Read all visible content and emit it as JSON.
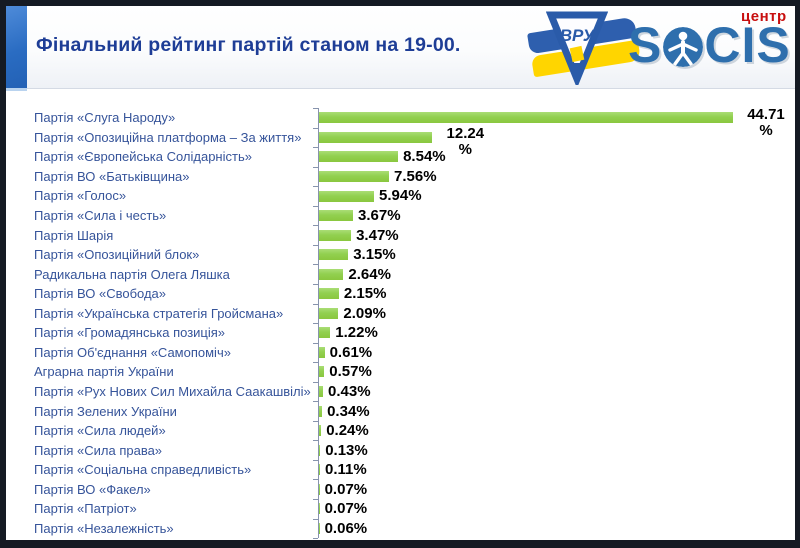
{
  "header": {
    "title": "Фінальний рейтинг партій станом на 19-00."
  },
  "logo": {
    "wordmark_left": "S",
    "wordmark_right": "CIS",
    "badge": "центр",
    "flag_badge": "ВРУ"
  },
  "colors": {
    "bar_green": "#92d050",
    "title_blue": "#1e3d96",
    "party_label_blue": "#36549a",
    "axis_gray": "#8793ad",
    "socis_blue": "#2e6fad",
    "centr_red": "#c80f0f",
    "flag_blue": "#2e5fae",
    "flag_yellow": "#ffd500",
    "accent_bar_blue": "#2a6cc2",
    "frame_dark": "#151a23"
  },
  "chart_data": {
    "type": "bar",
    "orientation": "horizontal",
    "title": "Фінальний рейтинг партій станом на 19-00.",
    "grid": false,
    "legend": false,
    "xlim": [
      0,
      48
    ],
    "bar_color": "#92d050",
    "categories": [
      "Партія «Слуга Народу»",
      "Партія «Опозиційна платформа – За життя»",
      "Партія «Європейська Солідарність»",
      "Партія ВО «Батьківщина»",
      "Партія «Голос»",
      "Партія «Сила і честь»",
      "Партія Шарія",
      "Партія «Опозиційний блок»",
      "Радикальна партія Олега Ляшка",
      "Партія ВО «Свобода»",
      "Партія «Українська стратегія Гройсмана»",
      "Партія «Громадянська позиція»",
      "Партія Об'єднання «Самопоміч»",
      "Аграрна партія України",
      "Партія «Рух Нових Сил Михайла Саакашвілі»",
      "Партія Зелених України",
      "Партія «Сила людей»",
      "Партія «Сила права»",
      "Партія «Соціальна справедливість»",
      "Партія ВО «Факел»",
      "Партія «Патріот»",
      "Партія «Незалежність»"
    ],
    "values": [
      44.71,
      12.24,
      8.54,
      7.56,
      5.94,
      3.67,
      3.47,
      3.15,
      2.64,
      2.15,
      2.09,
      1.22,
      0.61,
      0.57,
      0.43,
      0.34,
      0.24,
      0.13,
      0.11,
      0.07,
      0.07,
      0.06
    ],
    "value_labels": [
      "44.71\n%",
      "12.24\n%",
      "8.54%",
      "7.56%",
      "5.94%",
      "3.67%",
      "3.47%",
      "3.15%",
      "2.64%",
      "2.15%",
      "2.09%",
      "1.22%",
      "0.61%",
      "0.57%",
      "0.43%",
      "0.34%",
      "0.24%",
      "0.13%",
      "0.11%",
      "0.07%",
      "0.07%",
      "0.06%"
    ]
  }
}
